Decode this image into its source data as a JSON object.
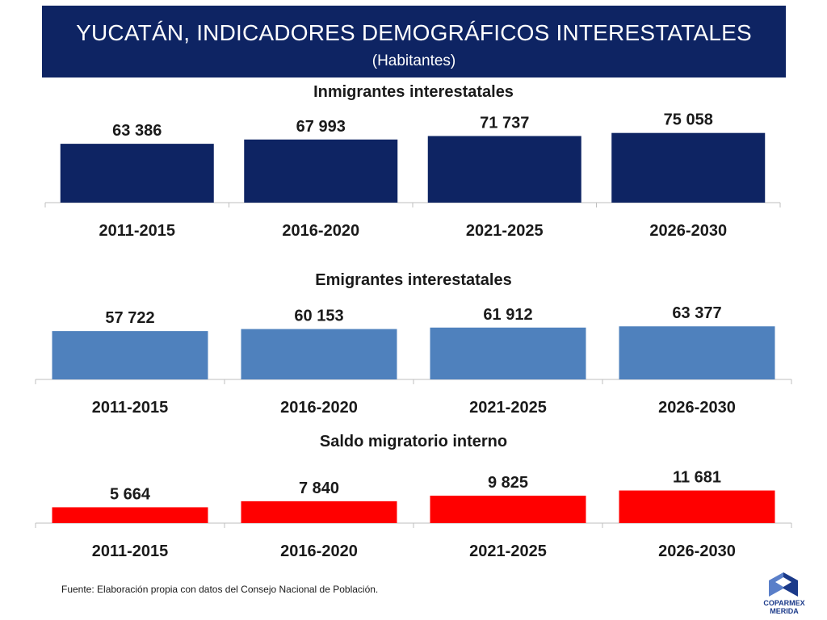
{
  "header": {
    "title": "YUCATÁN,  INDICADORES DEMOGRÁFICOS INTERESTATALES",
    "subtitle": "(Habitantes)"
  },
  "chart_data": [
    {
      "type": "bar",
      "title": "Inmigrantes interestatales",
      "categories": [
        "2011-2015",
        "2016-2020",
        "2021-2025",
        "2026-2030"
      ],
      "values": [
        63386,
        67993,
        71737,
        75058
      ],
      "value_labels": [
        "63 386",
        "67 993",
        "71 737",
        "75 058"
      ],
      "color": "#0e2463",
      "ylim": [
        0,
        80000
      ]
    },
    {
      "type": "bar",
      "title": "Emigrantes interestatales",
      "categories": [
        "2011-2015",
        "2016-2020",
        "2021-2025",
        "2026-2030"
      ],
      "values": [
        57722,
        60153,
        61912,
        63377
      ],
      "value_labels": [
        "57 722",
        "60 153",
        "61 912",
        "63 377"
      ],
      "color": "#4f81bd",
      "ylim": [
        0,
        80000
      ]
    },
    {
      "type": "bar",
      "title": "Saldo migratorio interno",
      "categories": [
        "2011-2015",
        "2016-2020",
        "2021-2025",
        "2026-2030"
      ],
      "values": [
        5664,
        7840,
        9825,
        11681
      ],
      "value_labels": [
        "5 664",
        "7 840",
        "9 825",
        "11 681"
      ],
      "color": "#ff0000",
      "ylim": [
        0,
        13000
      ]
    }
  ],
  "footer": {
    "source": "Fuente: Elaboración propia con datos del Consejo Nacional de Población.",
    "logo_text_1": "COPARMEX",
    "logo_text_2": "MERIDA"
  }
}
